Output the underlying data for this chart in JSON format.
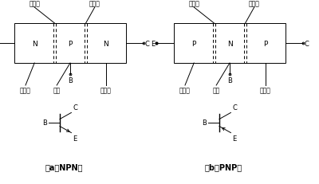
{
  "bg_color": "#ffffff",
  "line_color": "#000000",
  "font_color": "#000000",
  "fig_width": 4.0,
  "fig_height": 2.32,
  "dpi": 100,
  "npn_regions": [
    "N",
    "P",
    "N"
  ],
  "pnp_regions": [
    "P",
    "N",
    "P"
  ],
  "label_fashe": "发射结",
  "label_jidian": "集电结",
  "label_fashequ": "发射区",
  "label_jiqu": "基区",
  "label_jidianqu": "集电区",
  "label_B": "B",
  "label_E": "E",
  "label_C": "C",
  "caption_npn": "（a）NPN型",
  "caption_pnp": "（b）PNP型"
}
